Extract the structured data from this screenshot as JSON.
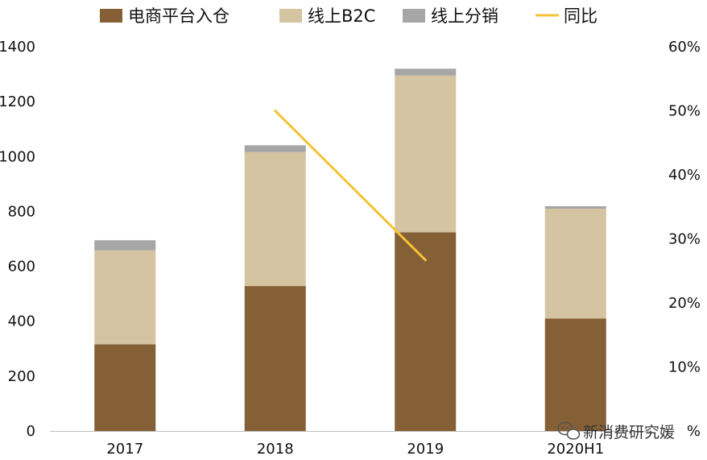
{
  "colors": {
    "platform": "#855F36",
    "b2c": "#D5C4A1",
    "distribution": "#A6A6A6",
    "yoy": "#F5C334",
    "axis": "#BFBFBF",
    "text": "#111111"
  },
  "legend": [
    {
      "key": "platform",
      "label": "电商平台入仓",
      "kind": "box"
    },
    {
      "key": "b2c",
      "label": "线上B2C",
      "kind": "box"
    },
    {
      "key": "distribution",
      "label": "线上分销",
      "kind": "box"
    },
    {
      "key": "yoy",
      "label": "同比",
      "kind": "line"
    }
  ],
  "watermark": {
    "icon": "wechat-icon",
    "text": "新消费研究媛"
  },
  "chart_data": {
    "type": "bar",
    "stacked": true,
    "categories": [
      "2017",
      "2018",
      "2019",
      "2020H1"
    ],
    "series": [
      {
        "name": "电商平台入仓",
        "key": "platform",
        "axis": "left",
        "values": [
          316,
          528,
          724,
          410
        ]
      },
      {
        "name": "线上B2C",
        "key": "b2c",
        "axis": "left",
        "values": [
          342,
          488,
          571,
          400
        ]
      },
      {
        "name": "线上分销",
        "key": "distribution",
        "axis": "left",
        "values": [
          37,
          25,
          25,
          9
        ]
      }
    ],
    "line_series": [
      {
        "name": "同比",
        "key": "yoy",
        "axis": "right",
        "type": "line",
        "points": [
          {
            "category": "2018",
            "value": 0.5
          },
          {
            "category": "2019",
            "value": 0.267
          }
        ]
      }
    ],
    "left_axis": {
      "ylim": [
        0,
        1400
      ],
      "ticks": [
        0,
        200,
        400,
        600,
        800,
        1000,
        1200,
        1400
      ],
      "tick_labels": [
        "0",
        "200",
        "400",
        "600",
        "800",
        "1000",
        "1200",
        "1400"
      ]
    },
    "right_axis": {
      "ylim": [
        0,
        0.6
      ],
      "ticks": [
        0.1,
        0.2,
        0.3,
        0.4,
        0.5,
        0.6
      ],
      "tick_labels": [
        "10%",
        "20%",
        "30%",
        "40%",
        "50%",
        "60%"
      ],
      "zero_label": "%"
    },
    "title": "",
    "xlabel": "",
    "ylabel": "",
    "grid": false,
    "legend_position": "top"
  }
}
